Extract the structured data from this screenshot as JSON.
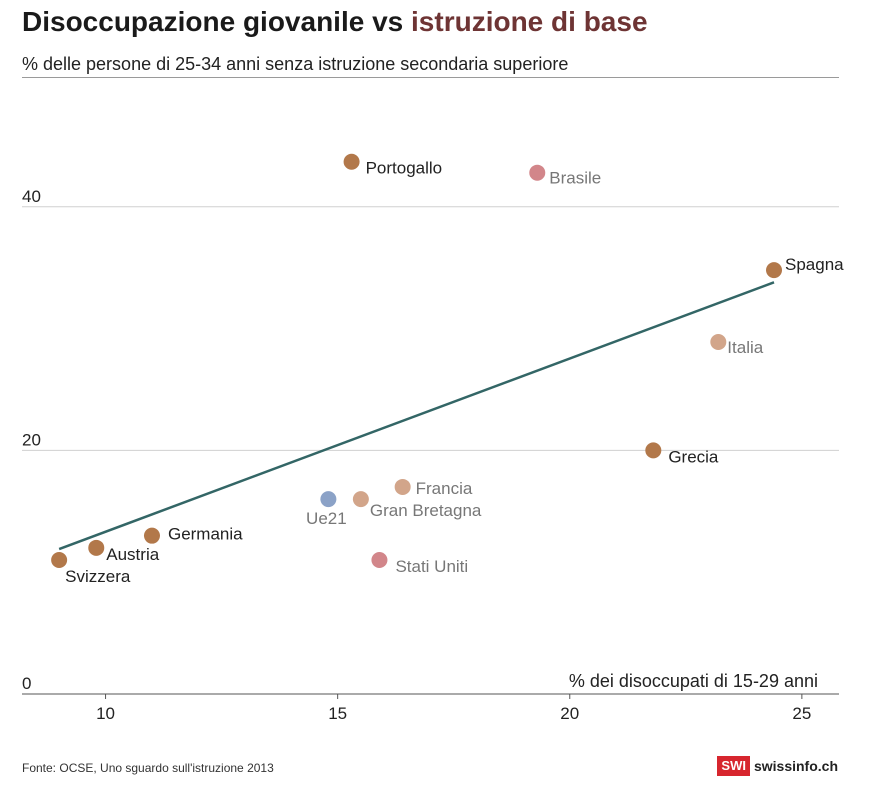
{
  "header": {
    "title_main": "Disoccupazione giovanile vs",
    "title_accent": "istruzione di base",
    "subtitle": "% delle persone di 25-34 anni senza istruzione secondaria superiore"
  },
  "chart_data": {
    "type": "scatter",
    "title": "Disoccupazione giovanile vs istruzione di base",
    "ylabel": "% delle persone di 25-34 anni senza istruzione secondaria superiore",
    "xlabel": "% dei disoccupati di 15-29 anni",
    "xlim": [
      8.2,
      25.8
    ],
    "ylim": [
      0,
      50
    ],
    "x_ticks": [
      10,
      15,
      20,
      25
    ],
    "y_ticks": [
      0,
      20,
      40
    ],
    "grid": true,
    "points": [
      {
        "label": "Svizzera",
        "x": 9.0,
        "y": 11,
        "color": "#b2784a",
        "label_color": "#222222"
      },
      {
        "label": "Austria",
        "x": 9.8,
        "y": 12,
        "color": "#b2784a",
        "label_color": "#222222"
      },
      {
        "label": "Germania",
        "x": 11.0,
        "y": 13,
        "color": "#b2784a",
        "label_color": "#222222"
      },
      {
        "label": "Ue21",
        "x": 14.8,
        "y": 16,
        "color": "#8ba2c7",
        "label_color": "#777777"
      },
      {
        "label": "Portogallo",
        "x": 15.3,
        "y": 43.7,
        "color": "#b2784a",
        "label_color": "#222222"
      },
      {
        "label": "Gran Bretagna",
        "x": 15.5,
        "y": 16,
        "color": "#d2a58a",
        "label_color": "#777777"
      },
      {
        "label": "Stati Uniti",
        "x": 15.9,
        "y": 11,
        "color": "#d2868a",
        "label_color": "#777777"
      },
      {
        "label": "Francia",
        "x": 16.4,
        "y": 17,
        "color": "#d2a58a",
        "label_color": "#777777"
      },
      {
        "label": "Brasile",
        "x": 19.3,
        "y": 42.8,
        "color": "#d2868a",
        "label_color": "#777777"
      },
      {
        "label": "Grecia",
        "x": 21.8,
        "y": 20,
        "color": "#b2784a",
        "label_color": "#222222"
      },
      {
        "label": "Italia",
        "x": 23.2,
        "y": 28.9,
        "color": "#d2a58a",
        "label_color": "#777777"
      },
      {
        "label": "Spagna",
        "x": 24.4,
        "y": 34.8,
        "color": "#b2784a",
        "label_color": "#222222"
      }
    ],
    "trendline": {
      "x": [
        9.0,
        24.4
      ],
      "y": [
        11.9,
        33.8
      ],
      "color": "#336666"
    }
  },
  "footer": {
    "source": "Fonte: OCSE, Uno sguardo sull'istruzione 2013",
    "brand_badge": "SWI",
    "brand_name": "swissinfo.ch"
  }
}
